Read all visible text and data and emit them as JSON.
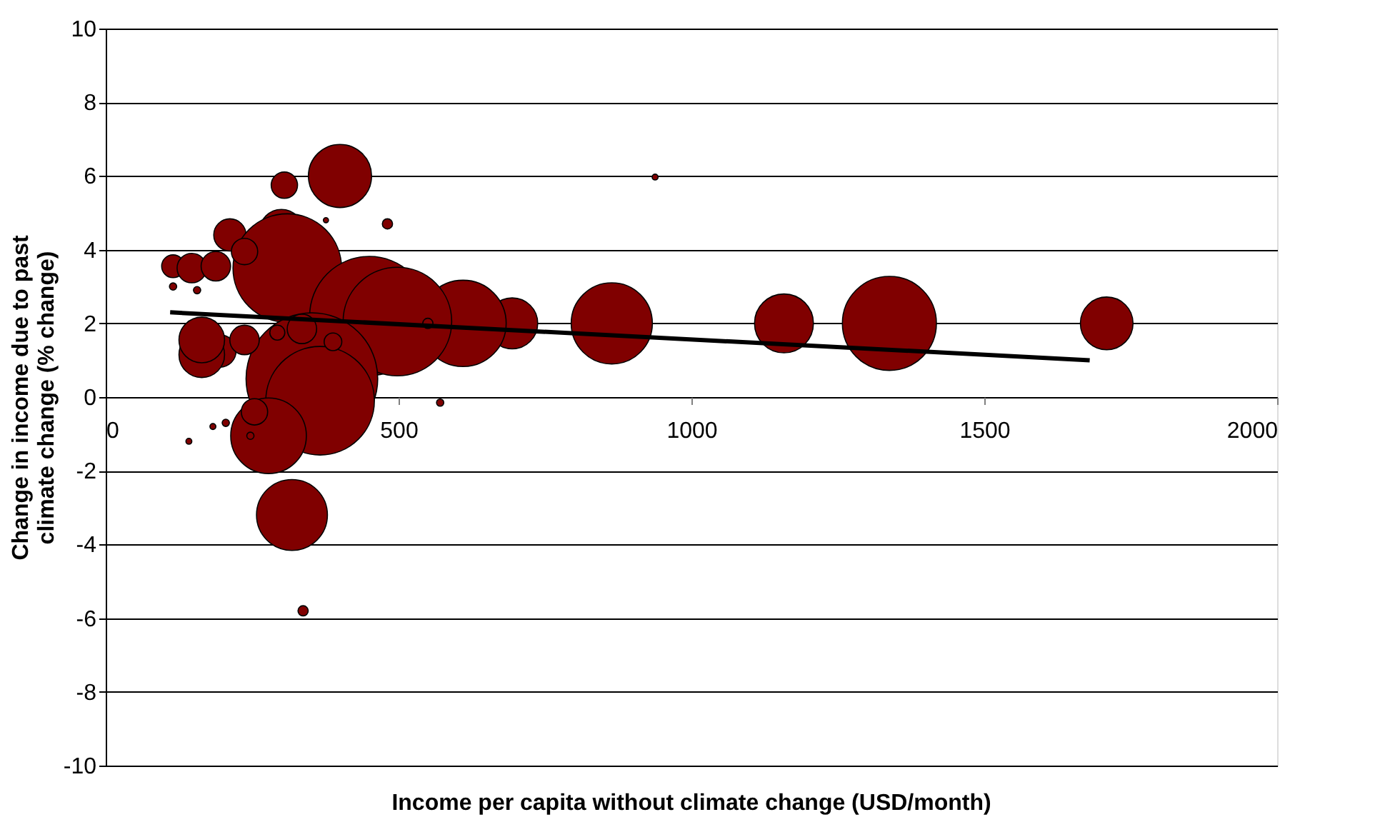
{
  "chart_data": {
    "type": "bubble",
    "xlabel": "Income per capita without climate change (USD/month)",
    "ylabel": "Change in income due to past climate change (% change)",
    "xlim": [
      0,
      2000
    ],
    "xticks": [
      0,
      500,
      1000,
      1500,
      2000
    ],
    "ylim": [
      -10,
      10
    ],
    "yticks": [
      -10,
      -8,
      -6,
      -4,
      -2,
      0,
      2,
      4,
      6,
      8,
      10
    ],
    "grid": "y",
    "series": [
      {
        "color": "#800000",
        "x": [
          1709,
          1338,
          1158,
          864,
          694,
          610,
          400,
          305,
          481,
          376,
          212,
          300,
          310,
          450,
          498,
          352,
          366,
          278,
          318,
          337,
          237,
          115,
          147,
          188,
          195,
          164,
          164,
          237,
          335,
          388,
          293,
          205,
          247,
          254,
          142,
          183,
          115,
          156,
          938,
          550,
          571
        ],
        "values": [
          2.0,
          2.0,
          2.0,
          2.0,
          2.0,
          2.0,
          6.0,
          5.75,
          4.7,
          4.8,
          4.4,
          4.5,
          3.5,
          2.2,
          2.05,
          0.5,
          -0.1,
          -1.05,
          -3.2,
          -5.8,
          3.95,
          3.55,
          3.5,
          3.55,
          1.25,
          1.15,
          1.55,
          1.55,
          1.85,
          1.5,
          1.75,
          -0.7,
          -1.05,
          -0.4,
          -1.2,
          -0.8,
          3.0,
          2.9,
          5.97,
          2.0,
          -0.15
        ],
        "sizes": [
          0.16,
          0.51,
          0.2,
          0.38,
          0.15,
          0.43,
          0.23,
          0.04,
          0.006,
          0.0015,
          0.06,
          0.11,
          0.68,
          0.82,
          0.68,
          1,
          0.68,
          0.33,
          0.29,
          0.006,
          0.04,
          0.03,
          0.05,
          0.05,
          0.06,
          0.12,
          0.12,
          0.05,
          0.05,
          0.018,
          0.013,
          0.003,
          0.003,
          0.04,
          0.002,
          0.002,
          0.003,
          0.003,
          0.002,
          0.006,
          0.003
        ]
      },
      {
        "type": "line",
        "color": "#000000",
        "x": [
          110,
          1680
        ],
        "values": [
          2.3,
          1.0
        ]
      }
    ]
  }
}
